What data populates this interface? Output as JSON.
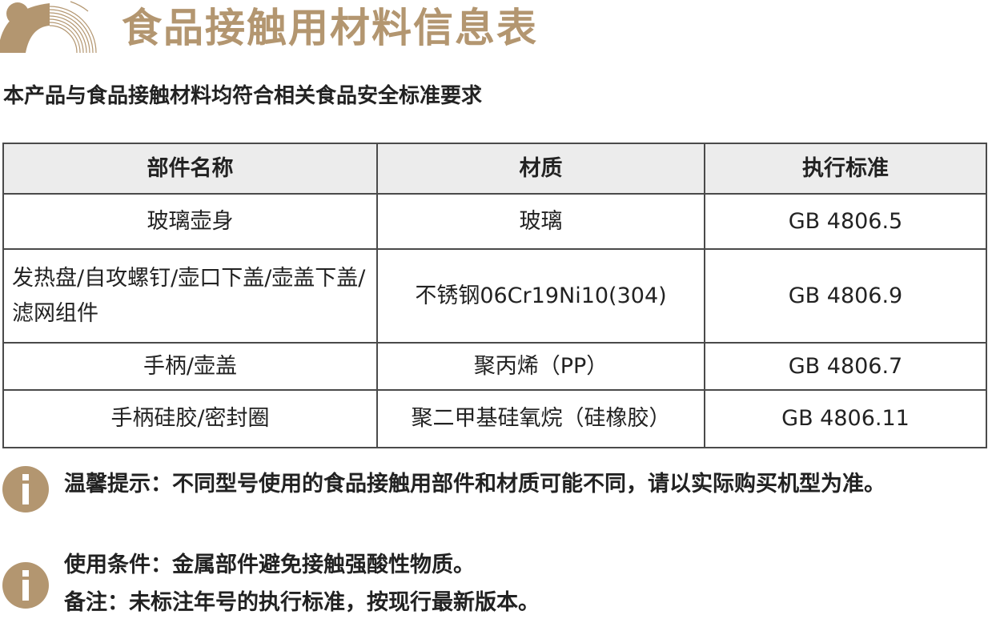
{
  "brand_color": "#b39670",
  "title": "食品接触用材料信息表",
  "subtitle": "本产品与食品接触材料均符合相关食品安全标准要求",
  "table": {
    "headers": [
      "部件名称",
      "材质",
      "执行标准"
    ],
    "rows": [
      [
        "玻璃壶身",
        "玻璃",
        "GB 4806.5"
      ],
      [
        "发热盘/自攻螺钉/壶口下盖/壶盖下盖/滤网组件",
        "不锈钢06Cr19Ni10(304)",
        "GB 4806.9"
      ],
      [
        "手柄/壶盖",
        "聚丙烯（PP）",
        "GB 4806.7"
      ],
      [
        "手柄硅胶/密封圈",
        "聚二甲基硅氧烷（硅橡胶）",
        "GB 4806.11"
      ]
    ]
  },
  "notes": [
    "温馨提示：不同型号使用的食品接触用部件和材质可能不同，请以实际购买机型为准。",
    "使用条件：金属部件避免接触强酸性物质。",
    "备注：未标注年号的执行标准，按现行最新版本。"
  ],
  "icons": {
    "logo": "bear-logo",
    "info": "info-icon"
  }
}
